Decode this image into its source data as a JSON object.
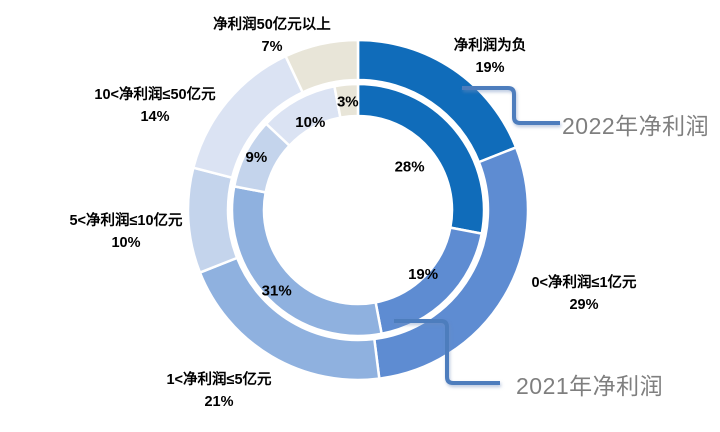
{
  "chart_data": {
    "type": "pie",
    "subtype": "double_ring_donut",
    "title": "",
    "unit": "%",
    "direction": "clockwise",
    "start_angle_deg": 0,
    "legend_position": "none",
    "grid": false,
    "categories": [
      "净利润为负",
      "0<净利润≤1亿元",
      "1<净利润≤5亿元",
      "5<净利润≤10亿元",
      "10<净利润≤50亿元",
      "净利润50亿元以上"
    ],
    "series": [
      {
        "name": "2022年净利润",
        "ring": "outer",
        "values": [
          19,
          29,
          21,
          10,
          14,
          7
        ]
      },
      {
        "name": "2021年净利润",
        "ring": "inner",
        "values": [
          28,
          19,
          31,
          9,
          10,
          3
        ]
      }
    ],
    "segment_colors": [
      "#106CBA",
      "#5E8CD2",
      "#8FB1DF",
      "#C4D4EC",
      "#DBE3F3",
      "#E8E5D8"
    ],
    "category_label_color": "#000000",
    "data_label_color": "#000000",
    "callout_text_color": "#7F7F7F",
    "connector_color": "#4D7DBD",
    "background": "#FFFFFF"
  }
}
